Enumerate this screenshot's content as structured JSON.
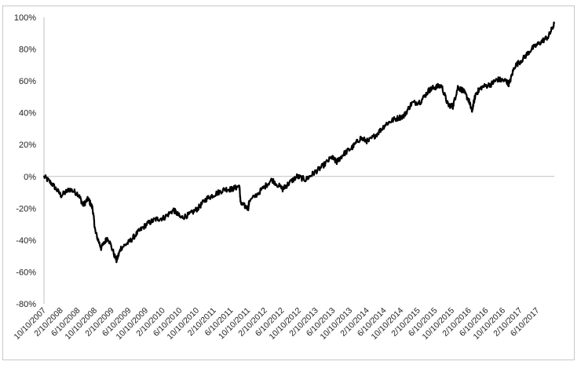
{
  "chart_data": {
    "type": "line",
    "title": "",
    "xlabel": "",
    "ylabel": "",
    "ylim": [
      -0.8,
      1.0
    ],
    "y_tick_labels": [
      "100%",
      "80%",
      "60%",
      "40%",
      "20%",
      "0%",
      "-20%",
      "-40%",
      "-60%",
      "-80%"
    ],
    "x_tick_labels": [
      "10/10/2007",
      "2/10/2008",
      "6/10/2008",
      "10/10/2008",
      "2/10/2009",
      "6/10/2009",
      "10/10/2009",
      "2/10/2010",
      "6/10/2010",
      "10/10/2010",
      "2/10/2011",
      "6/10/2011",
      "10/10/2011",
      "2/10/2012",
      "6/10/2012",
      "10/10/2012",
      "2/10/2013",
      "6/10/2013",
      "10/10/2013",
      "2/10/2014",
      "6/10/2014",
      "10/10/2014",
      "2/10/2015",
      "6/10/2015",
      "10/10/2015",
      "2/10/2016",
      "6/10/2016",
      "10/10/2016",
      "2/10/2017",
      "6/10/2017"
    ],
    "grid": false,
    "legend": "none",
    "line_color": "#000000",
    "series": [
      {
        "x": [
          "2007-10-10",
          "2007-12-10",
          "2008-02-10",
          "2008-04-10",
          "2008-06-10",
          "2008-07-15",
          "2008-08-20",
          "2008-09-20",
          "2008-10-10",
          "2008-11-20",
          "2009-01-06",
          "2009-03-09",
          "2009-04-10",
          "2009-06-10",
          "2009-08-10",
          "2009-10-10",
          "2009-12-10",
          "2010-02-10",
          "2010-04-20",
          "2010-06-10",
          "2010-08-10",
          "2010-10-10",
          "2010-12-10",
          "2011-02-10",
          "2011-04-20",
          "2011-06-10",
          "2011-08-01",
          "2011-08-10",
          "2011-10-03",
          "2011-10-10",
          "2012-01-10",
          "2012-03-20",
          "2012-06-04",
          "2012-07-10",
          "2012-09-14",
          "2012-11-15",
          "2013-01-10",
          "2013-03-10",
          "2013-05-20",
          "2013-06-24",
          "2013-08-10",
          "2013-10-10",
          "2013-12-10",
          "2014-02-03",
          "2014-04-10",
          "2014-06-10",
          "2014-08-10",
          "2014-10-15",
          "2014-12-10",
          "2015-02-10",
          "2015-04-10",
          "2015-05-20",
          "2015-07-10",
          "2015-08-25",
          "2015-09-29",
          "2015-11-03",
          "2015-12-10",
          "2016-01-20",
          "2016-02-11",
          "2016-03-10",
          "2016-04-20",
          "2016-06-27",
          "2016-08-10",
          "2016-10-10",
          "2016-11-03",
          "2016-12-10",
          "2017-02-10",
          "2017-04-10",
          "2017-06-10",
          "2017-08-10",
          "2017-09-20"
        ],
        "y": [
          0.0,
          -0.05,
          -0.12,
          -0.08,
          -0.11,
          -0.18,
          -0.14,
          -0.2,
          -0.35,
          -0.45,
          -0.38,
          -0.53,
          -0.45,
          -0.41,
          -0.35,
          -0.3,
          -0.27,
          -0.26,
          -0.21,
          -0.26,
          -0.24,
          -0.2,
          -0.14,
          -0.11,
          -0.08,
          -0.08,
          -0.06,
          -0.17,
          -0.2,
          -0.16,
          -0.08,
          -0.02,
          -0.08,
          -0.05,
          0.0,
          -0.02,
          0.02,
          0.06,
          0.12,
          0.09,
          0.14,
          0.18,
          0.24,
          0.22,
          0.27,
          0.33,
          0.36,
          0.38,
          0.46,
          0.47,
          0.54,
          0.56,
          0.57,
          0.45,
          0.44,
          0.56,
          0.54,
          0.48,
          0.41,
          0.52,
          0.56,
          0.58,
          0.61,
          0.6,
          0.58,
          0.69,
          0.74,
          0.8,
          0.84,
          0.88,
          0.96
        ]
      }
    ]
  }
}
